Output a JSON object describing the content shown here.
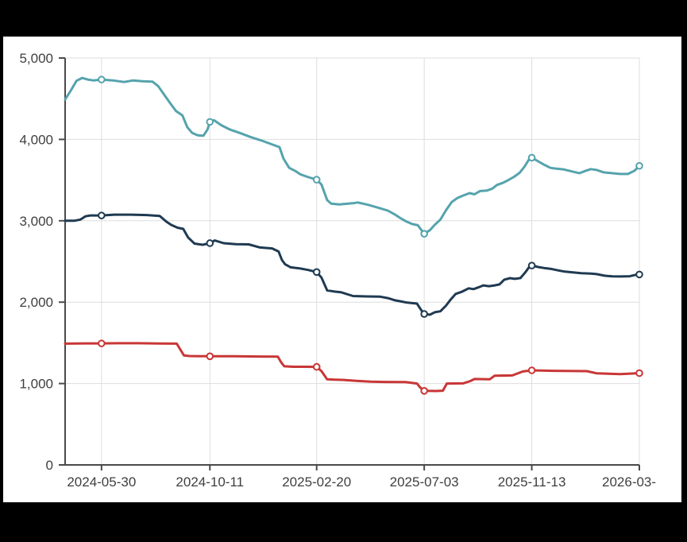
{
  "frame": {
    "border_color": "#000000",
    "background": "#ffffff"
  },
  "chart_data": {
    "type": "line",
    "title": "",
    "xlabel": "",
    "ylabel": "",
    "grid": true,
    "legend": false,
    "colors": {
      "gridline": "#dedede",
      "axis": "#4a4a4a",
      "tick_text": "#3f3f3f",
      "marker_fill": "#ffffff"
    },
    "x_axis": {
      "type": "date",
      "range": [
        "2024-04-15",
        "2026-03-26"
      ],
      "ticks": [
        {
          "date": "2024-05-30",
          "label": "2024-05-30"
        },
        {
          "date": "2024-10-11",
          "label": "2024-10-11"
        },
        {
          "date": "2025-02-20",
          "label": "2025-02-20"
        },
        {
          "date": "2025-07-03",
          "label": "2025-07-03"
        },
        {
          "date": "2025-11-13",
          "label": "2025-11-13"
        },
        {
          "date": "2026-03-26",
          "label": "2026-03-",
          "truncated": true
        }
      ]
    },
    "y_axis": {
      "range": [
        0,
        5000
      ],
      "tick_step": 1000,
      "ticks": [
        {
          "value": 0,
          "label": "0"
        },
        {
          "value": 1000,
          "label": "1,000"
        },
        {
          "value": 2000,
          "label": "2,000"
        },
        {
          "value": 3000,
          "label": "3,000"
        },
        {
          "value": 4000,
          "label": "4,000"
        },
        {
          "value": 5000,
          "label": "5,000"
        }
      ]
    },
    "marker_dates": [
      "2024-05-30",
      "2024-10-11",
      "2025-02-20",
      "2025-07-03",
      "2025-11-13",
      "2026-03-26"
    ],
    "series": [
      {
        "name": "teal",
        "color": "#55a3ad",
        "points": [
          [
            "2024-04-15",
            4490
          ],
          [
            "2024-04-22",
            4600
          ],
          [
            "2024-04-29",
            4720
          ],
          [
            "2024-05-06",
            4755
          ],
          [
            "2024-05-13",
            4735
          ],
          [
            "2024-05-20",
            4725
          ],
          [
            "2024-05-30",
            4735
          ],
          [
            "2024-06-13",
            4725
          ],
          [
            "2024-06-27",
            4705
          ],
          [
            "2024-07-08",
            4725
          ],
          [
            "2024-07-20",
            4715
          ],
          [
            "2024-08-01",
            4710
          ],
          [
            "2024-08-08",
            4655
          ],
          [
            "2024-08-14",
            4570
          ],
          [
            "2024-08-24",
            4430
          ],
          [
            "2024-08-30",
            4350
          ],
          [
            "2024-09-07",
            4295
          ],
          [
            "2024-09-13",
            4150
          ],
          [
            "2024-09-19",
            4080
          ],
          [
            "2024-09-26",
            4050
          ],
          [
            "2024-10-03",
            4045
          ],
          [
            "2024-10-08",
            4120
          ],
          [
            "2024-10-11",
            4215
          ],
          [
            "2024-10-16",
            4235
          ],
          [
            "2024-10-25",
            4175
          ],
          [
            "2024-11-05",
            4120
          ],
          [
            "2024-11-18",
            4075
          ],
          [
            "2024-11-30",
            4030
          ],
          [
            "2024-12-14",
            3985
          ],
          [
            "2024-12-28",
            3935
          ],
          [
            "2025-01-05",
            3905
          ],
          [
            "2025-01-10",
            3765
          ],
          [
            "2025-01-17",
            3650
          ],
          [
            "2025-01-24",
            3615
          ],
          [
            "2025-01-31",
            3570
          ],
          [
            "2025-02-10",
            3535
          ],
          [
            "2025-02-20",
            3505
          ],
          [
            "2025-02-26",
            3445
          ],
          [
            "2025-03-05",
            3255
          ],
          [
            "2025-03-10",
            3210
          ],
          [
            "2025-03-20",
            3200
          ],
          [
            "2025-04-05",
            3215
          ],
          [
            "2025-04-12",
            3225
          ],
          [
            "2025-04-25",
            3195
          ],
          [
            "2025-05-09",
            3155
          ],
          [
            "2025-05-19",
            3125
          ],
          [
            "2025-05-28",
            3075
          ],
          [
            "2025-06-04",
            3030
          ],
          [
            "2025-06-11",
            2990
          ],
          [
            "2025-06-18",
            2960
          ],
          [
            "2025-06-25",
            2945
          ],
          [
            "2025-07-03",
            2840
          ],
          [
            "2025-07-10",
            2885
          ],
          [
            "2025-07-16",
            2950
          ],
          [
            "2025-07-23",
            3015
          ],
          [
            "2025-07-30",
            3130
          ],
          [
            "2025-08-06",
            3230
          ],
          [
            "2025-08-13",
            3280
          ],
          [
            "2025-08-20",
            3310
          ],
          [
            "2025-08-28",
            3340
          ],
          [
            "2025-09-03",
            3325
          ],
          [
            "2025-09-10",
            3365
          ],
          [
            "2025-09-18",
            3370
          ],
          [
            "2025-09-25",
            3395
          ],
          [
            "2025-10-01",
            3440
          ],
          [
            "2025-10-08",
            3465
          ],
          [
            "2025-10-15",
            3500
          ],
          [
            "2025-10-22",
            3540
          ],
          [
            "2025-10-29",
            3590
          ],
          [
            "2025-11-04",
            3665
          ],
          [
            "2025-11-09",
            3745
          ],
          [
            "2025-11-13",
            3775
          ],
          [
            "2025-11-20",
            3735
          ],
          [
            "2025-11-27",
            3695
          ],
          [
            "2025-12-06",
            3650
          ],
          [
            "2025-12-14",
            3640
          ],
          [
            "2025-12-23",
            3630
          ],
          [
            "2026-01-02",
            3605
          ],
          [
            "2026-01-11",
            3585
          ],
          [
            "2026-01-19",
            3615
          ],
          [
            "2026-01-25",
            3635
          ],
          [
            "2026-02-01",
            3625
          ],
          [
            "2026-02-10",
            3595
          ],
          [
            "2026-02-20",
            3585
          ],
          [
            "2026-03-02",
            3575
          ],
          [
            "2026-03-12",
            3575
          ],
          [
            "2026-03-20",
            3615
          ],
          [
            "2026-03-26",
            3675
          ]
        ]
      },
      {
        "name": "navy",
        "color": "#1f3a52",
        "points": [
          [
            "2024-04-15",
            3000
          ],
          [
            "2024-04-26",
            3000
          ],
          [
            "2024-05-04",
            3015
          ],
          [
            "2024-05-10",
            3055
          ],
          [
            "2024-05-16",
            3065
          ],
          [
            "2024-05-30",
            3065
          ],
          [
            "2024-06-15",
            3075
          ],
          [
            "2024-07-05",
            3075
          ],
          [
            "2024-07-25",
            3070
          ],
          [
            "2024-08-10",
            3060
          ],
          [
            "2024-08-18",
            2990
          ],
          [
            "2024-08-24",
            2950
          ],
          [
            "2024-09-01",
            2915
          ],
          [
            "2024-09-08",
            2900
          ],
          [
            "2024-09-14",
            2795
          ],
          [
            "2024-09-22",
            2720
          ],
          [
            "2024-10-02",
            2705
          ],
          [
            "2024-10-11",
            2725
          ],
          [
            "2024-10-17",
            2758
          ],
          [
            "2024-10-28",
            2725
          ],
          [
            "2024-11-12",
            2712
          ],
          [
            "2024-11-28",
            2710
          ],
          [
            "2024-12-12",
            2672
          ],
          [
            "2024-12-27",
            2660
          ],
          [
            "2025-01-04",
            2622
          ],
          [
            "2025-01-08",
            2520
          ],
          [
            "2025-01-12",
            2465
          ],
          [
            "2025-01-19",
            2428
          ],
          [
            "2025-01-30",
            2415
          ],
          [
            "2025-02-10",
            2395
          ],
          [
            "2025-02-20",
            2370
          ],
          [
            "2025-02-26",
            2302
          ],
          [
            "2025-03-05",
            2145
          ],
          [
            "2025-03-13",
            2132
          ],
          [
            "2025-03-22",
            2122
          ],
          [
            "2025-04-06",
            2075
          ],
          [
            "2025-04-23",
            2070
          ],
          [
            "2025-05-09",
            2068
          ],
          [
            "2025-05-19",
            2050
          ],
          [
            "2025-05-28",
            2022
          ],
          [
            "2025-06-11",
            1996
          ],
          [
            "2025-06-24",
            1982
          ],
          [
            "2025-06-29",
            1906
          ],
          [
            "2025-07-03",
            1855
          ],
          [
            "2025-07-10",
            1846
          ],
          [
            "2025-07-16",
            1876
          ],
          [
            "2025-07-23",
            1888
          ],
          [
            "2025-07-30",
            1958
          ],
          [
            "2025-08-05",
            2035
          ],
          [
            "2025-08-11",
            2102
          ],
          [
            "2025-08-19",
            2130
          ],
          [
            "2025-08-27",
            2170
          ],
          [
            "2025-09-02",
            2160
          ],
          [
            "2025-09-08",
            2182
          ],
          [
            "2025-09-14",
            2206
          ],
          [
            "2025-09-21",
            2196
          ],
          [
            "2025-09-28",
            2206
          ],
          [
            "2025-10-04",
            2218
          ],
          [
            "2025-10-10",
            2276
          ],
          [
            "2025-10-17",
            2295
          ],
          [
            "2025-10-23",
            2286
          ],
          [
            "2025-10-30",
            2296
          ],
          [
            "2025-11-05",
            2366
          ],
          [
            "2025-11-09",
            2422
          ],
          [
            "2025-11-13",
            2450
          ],
          [
            "2025-11-21",
            2432
          ],
          [
            "2025-11-28",
            2420
          ],
          [
            "2025-12-06",
            2410
          ],
          [
            "2025-12-16",
            2390
          ],
          [
            "2025-12-24",
            2375
          ],
          [
            "2026-01-03",
            2365
          ],
          [
            "2026-01-13",
            2355
          ],
          [
            "2026-01-25",
            2352
          ],
          [
            "2026-02-01",
            2345
          ],
          [
            "2026-02-11",
            2325
          ],
          [
            "2026-02-21",
            2316
          ],
          [
            "2026-03-03",
            2315
          ],
          [
            "2026-03-14",
            2318
          ],
          [
            "2026-03-21",
            2335
          ],
          [
            "2026-03-26",
            2340
          ]
        ]
      },
      {
        "name": "red",
        "color": "#c93636",
        "points": [
          [
            "2024-04-15",
            1490
          ],
          [
            "2024-05-10",
            1493
          ],
          [
            "2024-05-30",
            1493
          ],
          [
            "2024-06-20",
            1495
          ],
          [
            "2024-07-15",
            1495
          ],
          [
            "2024-08-10",
            1492
          ],
          [
            "2024-08-31",
            1490
          ],
          [
            "2024-09-04",
            1425
          ],
          [
            "2024-09-09",
            1345
          ],
          [
            "2024-09-16",
            1338
          ],
          [
            "2024-10-11",
            1335
          ],
          [
            "2024-11-10",
            1336
          ],
          [
            "2024-12-10",
            1332
          ],
          [
            "2025-01-03",
            1330
          ],
          [
            "2025-01-07",
            1262
          ],
          [
            "2025-01-11",
            1212
          ],
          [
            "2025-01-22",
            1206
          ],
          [
            "2025-02-05",
            1206
          ],
          [
            "2025-02-20",
            1205
          ],
          [
            "2025-02-26",
            1152
          ],
          [
            "2025-03-05",
            1052
          ],
          [
            "2025-03-14",
            1048
          ],
          [
            "2025-03-24",
            1045
          ],
          [
            "2025-04-10",
            1032
          ],
          [
            "2025-04-28",
            1022
          ],
          [
            "2025-05-15",
            1020
          ],
          [
            "2025-06-10",
            1018
          ],
          [
            "2025-06-24",
            1000
          ],
          [
            "2025-06-28",
            952
          ],
          [
            "2025-07-03",
            910
          ],
          [
            "2025-07-18",
            908
          ],
          [
            "2025-07-26",
            912
          ],
          [
            "2025-07-31",
            1000
          ],
          [
            "2025-08-20",
            1002
          ],
          [
            "2025-08-29",
            1030
          ],
          [
            "2025-09-03",
            1056
          ],
          [
            "2025-09-22",
            1052
          ],
          [
            "2025-09-28",
            1096
          ],
          [
            "2025-10-20",
            1100
          ],
          [
            "2025-11-02",
            1148
          ],
          [
            "2025-11-13",
            1162
          ],
          [
            "2025-12-10",
            1156
          ],
          [
            "2026-01-20",
            1152
          ],
          [
            "2026-02-01",
            1126
          ],
          [
            "2026-03-02",
            1116
          ],
          [
            "2026-03-15",
            1122
          ],
          [
            "2026-03-26",
            1128
          ]
        ]
      }
    ]
  }
}
